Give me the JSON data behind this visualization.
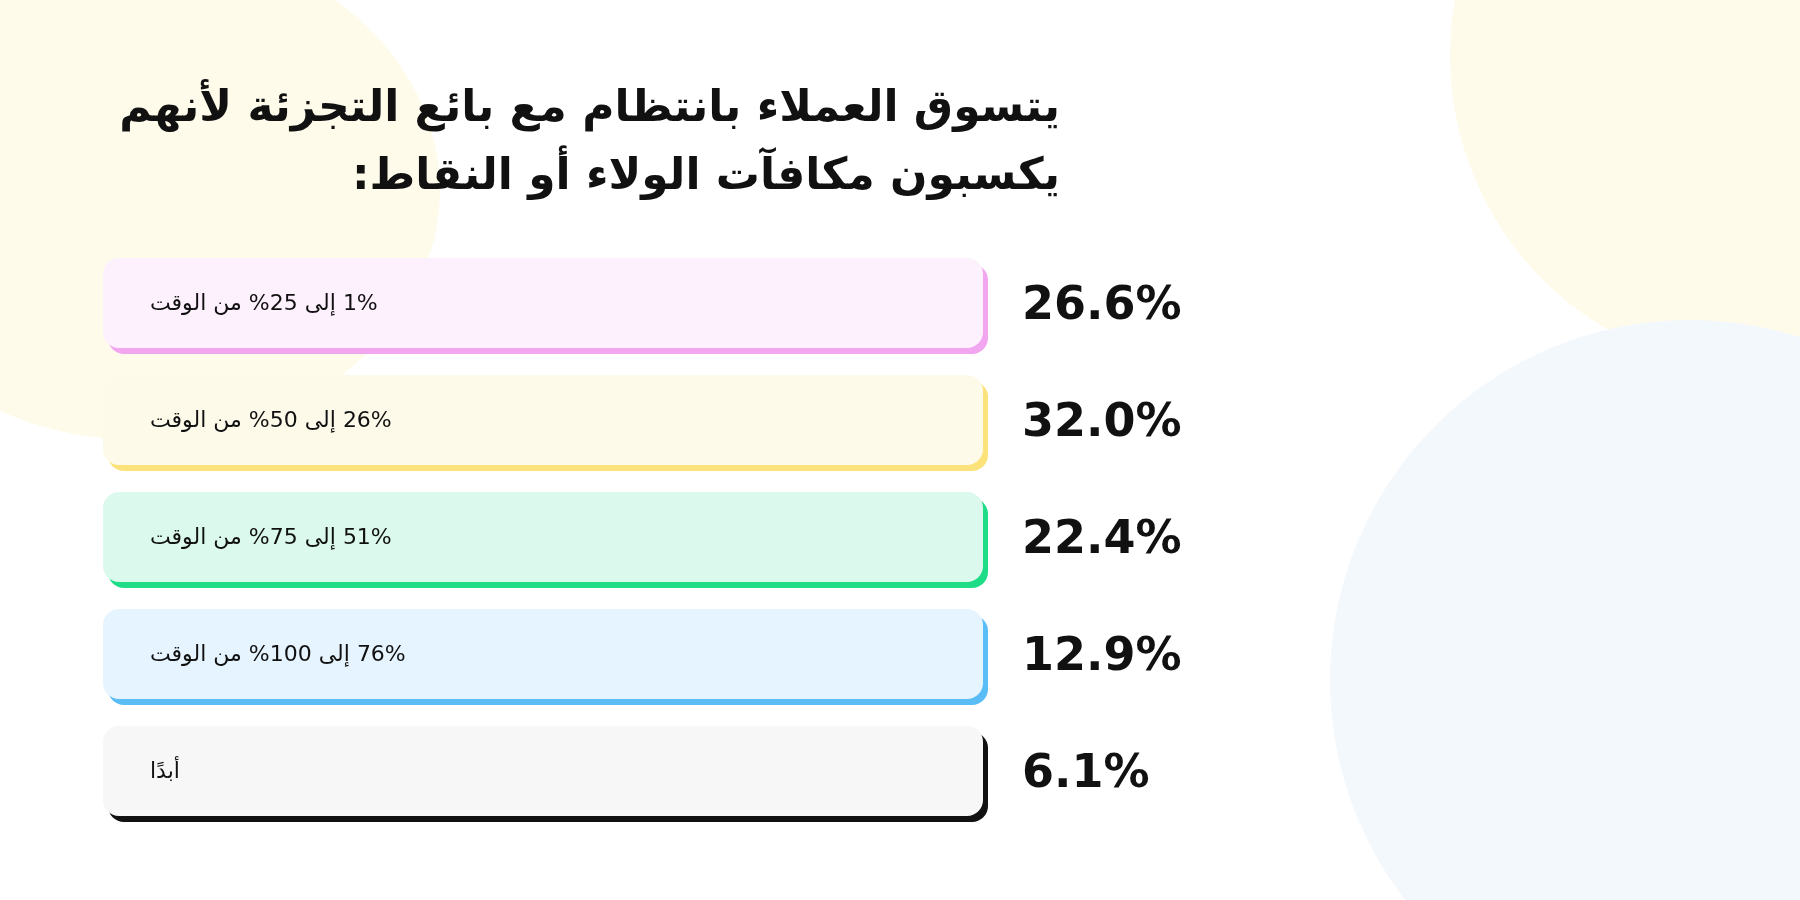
{
  "chart_data": {
    "type": "other",
    "title": "يتسوق العملاء بانتظام مع بائع التجزئة لأنهم يكسبون مكافآت الولاء أو النقاط:",
    "categories": [
      "1% إلى 25% من الوقت",
      "26% إلى 50% من الوقت",
      "51% إلى 75% من الوقت",
      "76% إلى 100% من الوقت",
      "أبدًا"
    ],
    "values": [
      26.6,
      32.0,
      22.4,
      12.9,
      6.1
    ],
    "value_labels": [
      "26.6%",
      "32.0%",
      "22.4%",
      "12.9%",
      "6.1%"
    ],
    "colors": [
      "#f3a6f0",
      "#fbe27a",
      "#1fdc86",
      "#5bbdf6",
      "#111111"
    ]
  }
}
